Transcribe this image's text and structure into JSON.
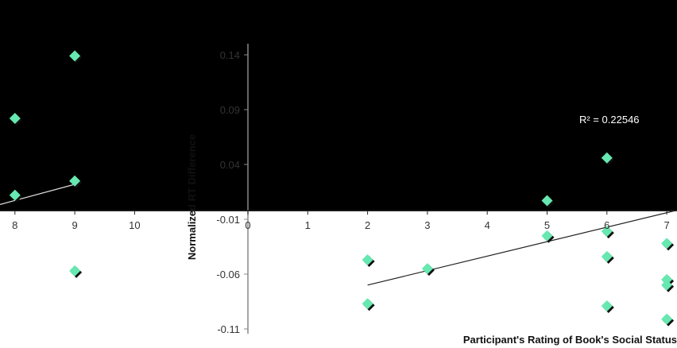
{
  "chart_data": {
    "type": "scatter",
    "xlabel": "Participant's Rating of Book's Social Status",
    "ylabel": "Normalized RT Difference",
    "x_ticks": [
      "0",
      "1",
      "2",
      "3",
      "4",
      "5",
      "6",
      "7",
      "8",
      "9",
      "10"
    ],
    "y_ticks": [
      "0.14",
      "0.09",
      "0.04",
      "-0.01",
      "-0.06",
      "-0.11"
    ],
    "xlim": [
      0,
      10
    ],
    "ylim": [
      -0.11,
      0.14
    ],
    "annotation": "R² = 0.22546",
    "points": [
      {
        "x": 2,
        "y": -0.047
      },
      {
        "x": 2,
        "y": -0.087
      },
      {
        "x": 3,
        "y": -0.055
      },
      {
        "x": 5,
        "y": 0.007
      },
      {
        "x": 5,
        "y": -0.025
      },
      {
        "x": 6,
        "y": 0.046
      },
      {
        "x": 6,
        "y": -0.021
      },
      {
        "x": 6,
        "y": -0.044
      },
      {
        "x": 6,
        "y": -0.089
      },
      {
        "x": 7,
        "y": -0.032
      },
      {
        "x": 7,
        "y": -0.065
      },
      {
        "x": 7,
        "y": -0.07
      },
      {
        "x": 7,
        "y": -0.101
      },
      {
        "x": 8,
        "y": 0.082
      },
      {
        "x": 8,
        "y": 0.012
      },
      {
        "x": 9,
        "y": 0.139
      },
      {
        "x": 9,
        "y": 0.025
      },
      {
        "x": 9,
        "y": -0.057
      }
    ],
    "trendline": {
      "x": [
        2,
        10
      ],
      "y": [
        -0.07,
        0.035
      ]
    },
    "colors": {
      "marker": "#66e8b0",
      "shadow": "#111111",
      "axis": "#222222",
      "trend": "#222222"
    }
  }
}
